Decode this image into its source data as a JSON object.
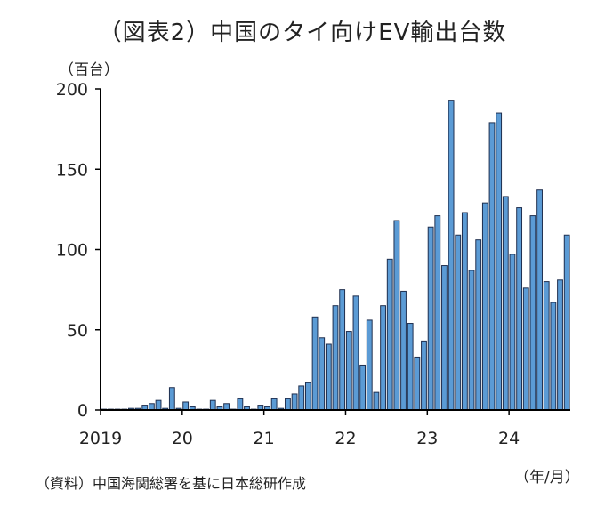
{
  "title": "（図表2）中国のタイ向けEV輸出台数",
  "y_unit": "（百台）",
  "x_unit": "（年/月）",
  "source": "（資料）中国海関総署を基に日本総研作成",
  "colors": {
    "bar": "#5b9bd5",
    "bar_edge": "#1f2f4f",
    "axis": "#000000"
  },
  "chart_data": {
    "type": "bar",
    "title": "（図表2）中国のタイ向けEV輸出台数",
    "ylabel": "（百台）",
    "xlabel": "（年/月）",
    "ylim": [
      0,
      200
    ],
    "grid": false,
    "y_ticks": [
      0,
      50,
      100,
      150,
      200
    ],
    "x_tick_labels": [
      {
        "label": "2019",
        "index": 0
      },
      {
        "label": "20",
        "index": 12
      },
      {
        "label": "21",
        "index": 24
      },
      {
        "label": "22",
        "index": 36
      },
      {
        "label": "23",
        "index": 48
      },
      {
        "label": "24",
        "index": 60
      }
    ],
    "values": [
      0.5,
      0.5,
      0.5,
      0.5,
      1,
      1,
      3,
      4,
      6,
      1,
      14,
      1,
      5,
      2,
      0.5,
      0.5,
      6,
      2,
      4,
      0.5,
      7,
      2,
      0.5,
      3,
      2,
      7,
      1,
      7,
      10,
      15,
      17,
      58,
      45,
      41,
      65,
      75,
      49,
      71,
      28,
      56,
      11,
      65,
      94,
      118,
      74,
      54,
      33,
      43,
      114,
      121,
      90,
      193,
      109,
      123,
      87,
      106,
      129,
      179,
      185,
      133,
      97,
      126,
      76,
      121,
      137,
      80,
      67,
      81,
      109
    ]
  }
}
